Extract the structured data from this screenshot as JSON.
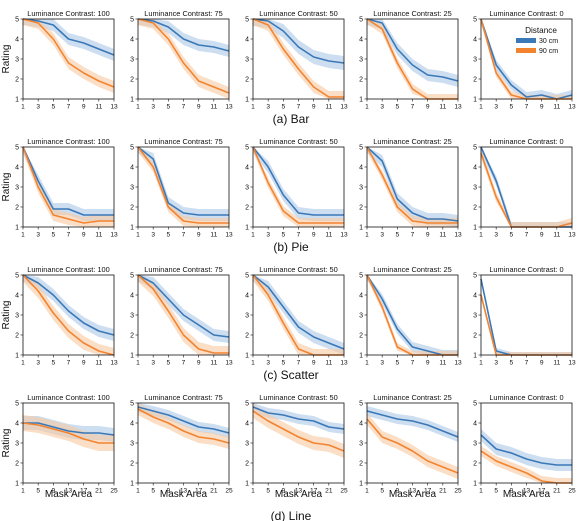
{
  "figure": {
    "ylabel": "Rating",
    "xlabel": "Mask Area",
    "legend": {
      "title": "Distance",
      "placement": "top-right of the last panel in the first row"
    },
    "row_captions": [
      "(a) Bar",
      "(b) Pie",
      "(c) Scatter",
      "(d) Line"
    ],
    "contrast_titles": [
      "Luminance Contrast: 100",
      "Luminance Contrast: 75",
      "Luminance Contrast: 50",
      "Luminance Contrast: 25",
      "Luminance Contrast: 0"
    ]
  },
  "chart_data": {
    "type": "line",
    "grid": false,
    "shaded_band": "confidence interval around each series",
    "series_styles": [
      {
        "name": "30 cm",
        "color": "#3a78b8",
        "band_color": "#aac8e6"
      },
      {
        "name": "90 cm",
        "color": "#f28430",
        "band_color": "#f8c8a0"
      }
    ],
    "yticks": [
      1,
      2,
      3,
      4,
      5
    ],
    "ylim": [
      1,
      5
    ],
    "rows": [
      {
        "caption": "(a) Bar",
        "x": [
          1,
          3,
          5,
          7,
          9,
          11,
          13
        ],
        "xlim": [
          1,
          13
        ],
        "panels": [
          {
            "title": "Luminance Contrast: 100",
            "series": [
              {
                "name": "30 cm",
                "values": [
                  5,
                  4.9,
                  4.7,
                  4.0,
                  3.8,
                  3.5,
                  3.2
                ],
                "band": 0.3
              },
              {
                "name": "90 cm",
                "values": [
                  5,
                  4.8,
                  4.0,
                  2.8,
                  2.3,
                  1.9,
                  1.6
                ],
                "band": 0.3
              }
            ]
          },
          {
            "title": "Luminance Contrast: 75",
            "series": [
              {
                "name": "30 cm",
                "values": [
                  5,
                  4.9,
                  4.6,
                  4.0,
                  3.7,
                  3.6,
                  3.4
                ],
                "band": 0.3
              },
              {
                "name": "90 cm",
                "values": [
                  5,
                  4.8,
                  4.0,
                  2.8,
                  1.9,
                  1.6,
                  1.3
                ],
                "band": 0.3
              }
            ]
          },
          {
            "title": "Luminance Contrast: 50",
            "series": [
              {
                "name": "30 cm",
                "values": [
                  5,
                  4.9,
                  4.4,
                  3.6,
                  3.1,
                  2.9,
                  2.8
                ],
                "band": 0.35
              },
              {
                "name": "90 cm",
                "values": [
                  5,
                  4.7,
                  3.5,
                  2.5,
                  1.6,
                  1.1,
                  1.1
                ],
                "band": 0.3
              }
            ]
          },
          {
            "title": "Luminance Contrast: 25",
            "series": [
              {
                "name": "30 cm",
                "values": [
                  5,
                  4.8,
                  3.5,
                  2.7,
                  2.2,
                  2.1,
                  1.9
                ],
                "band": 0.3
              },
              {
                "name": "90 cm",
                "values": [
                  5,
                  4.5,
                  2.8,
                  1.5,
                  1.0,
                  1.0,
                  1.0
                ],
                "band": 0.25
              }
            ]
          },
          {
            "title": "Luminance Contrast: 0",
            "series": [
              {
                "name": "30 cm",
                "values": [
                  5,
                  2.7,
                  1.7,
                  1.1,
                  1.2,
                  1.0,
                  1.2
                ],
                "band": 0.25
              },
              {
                "name": "90 cm",
                "values": [
                  5,
                  2.3,
                  1.2,
                  1.0,
                  1.0,
                  1.0,
                  1.0
                ],
                "band": 0.2
              }
            ]
          }
        ]
      },
      {
        "caption": "(b) Pie",
        "x": [
          1,
          3,
          5,
          7,
          9,
          11,
          13
        ],
        "xlim": [
          1,
          13
        ],
        "panels": [
          {
            "title": "Luminance Contrast: 100",
            "series": [
              {
                "name": "30 cm",
                "values": [
                  5,
                  3.3,
                  1.9,
                  1.9,
                  1.6,
                  1.6,
                  1.6
                ],
                "band": 0.3
              },
              {
                "name": "90 cm",
                "values": [
                  5,
                  3.0,
                  1.6,
                  1.4,
                  1.2,
                  1.3,
                  1.3
                ],
                "band": 0.3
              }
            ]
          },
          {
            "title": "Luminance Contrast: 75",
            "series": [
              {
                "name": "30 cm",
                "values": [
                  5,
                  4.4,
                  2.2,
                  1.7,
                  1.6,
                  1.6,
                  1.6
                ],
                "band": 0.3
              },
              {
                "name": "90 cm",
                "values": [
                  5,
                  4.0,
                  2.0,
                  1.3,
                  1.2,
                  1.2,
                  1.2
                ],
                "band": 0.25
              }
            ]
          },
          {
            "title": "Luminance Contrast: 50",
            "series": [
              {
                "name": "30 cm",
                "values": [
                  5,
                  4.0,
                  2.6,
                  1.7,
                  1.6,
                  1.6,
                  1.6
                ],
                "band": 0.3
              },
              {
                "name": "90 cm",
                "values": [
                  5,
                  3.2,
                  1.8,
                  1.2,
                  1.2,
                  1.2,
                  1.2
                ],
                "band": 0.25
              }
            ]
          },
          {
            "title": "Luminance Contrast: 25",
            "series": [
              {
                "name": "30 cm",
                "values": [
                  5,
                  4.3,
                  2.4,
                  1.7,
                  1.4,
                  1.4,
                  1.3
                ],
                "band": 0.3
              },
              {
                "name": "90 cm",
                "values": [
                  5,
                  3.6,
                  2.0,
                  1.3,
                  1.2,
                  1.2,
                  1.2
                ],
                "band": 0.25
              }
            ]
          },
          {
            "title": "Luminance Contrast: 0",
            "series": [
              {
                "name": "30 cm",
                "values": [
                  5,
                  3.3,
                  1.0,
                  1.0,
                  1.0,
                  1.0,
                  1.0
                ],
                "band": 0.25
              },
              {
                "name": "90 cm",
                "values": [
                  4.7,
                  2.5,
                  1.0,
                  1.0,
                  1.0,
                  1.0,
                  1.2
                ],
                "band": 0.25
              }
            ]
          }
        ]
      },
      {
        "caption": "(c) Scatter",
        "x": [
          1,
          3,
          5,
          7,
          9,
          11,
          13
        ],
        "xlim": [
          1,
          13
        ],
        "panels": [
          {
            "title": "Luminance Contrast: 100",
            "series": [
              {
                "name": "30 cm",
                "values": [
                  5,
                  4.6,
                  4.0,
                  3.2,
                  2.6,
                  2.2,
                  2.0
                ],
                "band": 0.3
              },
              {
                "name": "90 cm",
                "values": [
                  5,
                  4.2,
                  3.1,
                  2.2,
                  1.6,
                  1.2,
                  1.0
                ],
                "band": 0.35
              }
            ]
          },
          {
            "title": "Luminance Contrast: 75",
            "series": [
              {
                "name": "30 cm",
                "values": [
                  5,
                  4.6,
                  3.8,
                  3.0,
                  2.5,
                  2.0,
                  1.9
                ],
                "band": 0.3
              },
              {
                "name": "90 cm",
                "values": [
                  5,
                  4.3,
                  3.2,
                  2.0,
                  1.3,
                  1.1,
                  1.1
                ],
                "band": 0.35
              }
            ]
          },
          {
            "title": "Luminance Contrast: 50",
            "series": [
              {
                "name": "30 cm",
                "values": [
                  5,
                  4.4,
                  3.4,
                  2.4,
                  1.9,
                  1.6,
                  1.3
                ],
                "band": 0.3
              },
              {
                "name": "90 cm",
                "values": [
                  5,
                  4.0,
                  2.6,
                  1.3,
                  1.0,
                  1.0,
                  1.0
                ],
                "band": 0.3
              }
            ]
          },
          {
            "title": "Luminance Contrast: 25",
            "series": [
              {
                "name": "30 cm",
                "values": [
                  5,
                  3.8,
                  2.3,
                  1.4,
                  1.2,
                  1.0,
                  1.0
                ],
                "band": 0.25
              },
              {
                "name": "90 cm",
                "values": [
                  5,
                  3.4,
                  1.4,
                  1.0,
                  1.0,
                  1.0,
                  1.0
                ],
                "band": 0.2
              }
            ]
          },
          {
            "title": "Luminance Contrast: 0",
            "series": [
              {
                "name": "30 cm",
                "values": [
                  4.8,
                  1.2,
                  1.0,
                  1.0,
                  1.0,
                  1.0,
                  1.0
                ],
                "band": 0.15
              },
              {
                "name": "90 cm",
                "values": [
                  4.0,
                  1.0,
                  1.0,
                  1.0,
                  1.0,
                  1.0,
                  1.0
                ],
                "band": 0.15
              }
            ]
          }
        ]
      },
      {
        "caption": "(d) Line",
        "x": [
          1,
          5,
          9,
          13,
          17,
          21,
          25
        ],
        "xlim": [
          1,
          25
        ],
        "panels": [
          {
            "title": "Luminance Contrast: 100",
            "series": [
              {
                "name": "30 cm",
                "values": [
                  4.0,
                  4.0,
                  3.8,
                  3.6,
                  3.5,
                  3.5,
                  3.4
                ],
                "band": 0.35
              },
              {
                "name": "90 cm",
                "values": [
                  4.0,
                  3.9,
                  3.7,
                  3.5,
                  3.2,
                  3.0,
                  3.0
                ],
                "band": 0.4
              }
            ]
          },
          {
            "title": "Luminance Contrast: 75",
            "series": [
              {
                "name": "30 cm",
                "values": [
                  4.8,
                  4.6,
                  4.4,
                  4.1,
                  3.8,
                  3.7,
                  3.5
                ],
                "band": 0.25
              },
              {
                "name": "90 cm",
                "values": [
                  4.7,
                  4.3,
                  4.0,
                  3.6,
                  3.3,
                  3.2,
                  3.0
                ],
                "band": 0.3
              }
            ]
          },
          {
            "title": "Luminance Contrast: 50",
            "series": [
              {
                "name": "30 cm",
                "values": [
                  4.8,
                  4.5,
                  4.4,
                  4.2,
                  4.1,
                  3.8,
                  3.7
                ],
                "band": 0.25
              },
              {
                "name": "90 cm",
                "values": [
                  4.6,
                  4.1,
                  3.7,
                  3.3,
                  3.0,
                  2.9,
                  2.6
                ],
                "band": 0.35
              }
            ]
          },
          {
            "title": "Luminance Contrast: 25",
            "series": [
              {
                "name": "30 cm",
                "values": [
                  4.6,
                  4.4,
                  4.2,
                  4.1,
                  3.9,
                  3.6,
                  3.3
                ],
                "band": 0.25
              },
              {
                "name": "90 cm",
                "values": [
                  4.2,
                  3.3,
                  3.0,
                  2.6,
                  2.1,
                  1.8,
                  1.5
                ],
                "band": 0.3
              }
            ]
          },
          {
            "title": "Luminance Contrast: 0",
            "series": [
              {
                "name": "30 cm",
                "values": [
                  3.4,
                  2.7,
                  2.5,
                  2.2,
                  2.0,
                  1.9,
                  1.9
                ],
                "band": 0.3
              },
              {
                "name": "90 cm",
                "values": [
                  2.6,
                  2.1,
                  1.8,
                  1.5,
                  1.1,
                  1.0,
                  1.0
                ],
                "band": 0.25
              }
            ]
          }
        ]
      }
    ]
  }
}
